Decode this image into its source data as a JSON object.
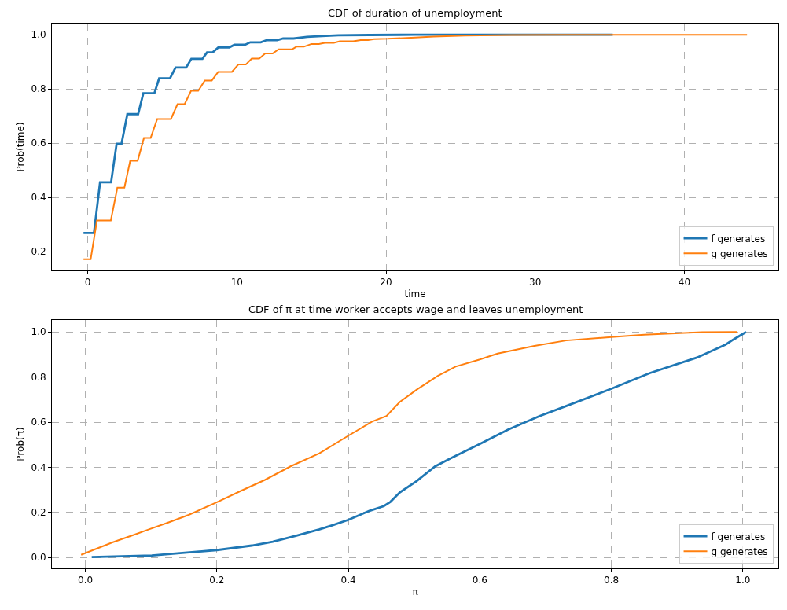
{
  "chart_data": [
    {
      "type": "line",
      "title": "CDF of duration of unemployment",
      "xlabel": "time",
      "ylabel": "Prob(time)",
      "xlim": [
        -2.4,
        46.3
      ],
      "ylim": [
        0.131,
        1.041
      ],
      "xticks": [
        0,
        10,
        20,
        30,
        40
      ],
      "yticks": [
        {
          "value": 0.2,
          "label": "0.2"
        },
        {
          "value": 0.4,
          "label": "0.4"
        },
        {
          "value": 0.6,
          "label": "0.6"
        },
        {
          "value": 0.8,
          "label": "0.8"
        },
        {
          "value": 1.0,
          "label": "1.0"
        }
      ],
      "grid": true,
      "legend": "bottom right",
      "series": [
        {
          "name": "f generates",
          "color": "#1f77b4",
          "x": [
            -0.28,
            0.42,
            0.83,
            1.57,
            1.94,
            2.27,
            2.66,
            3.38,
            3.73,
            4.47,
            4.79,
            5.52,
            5.89,
            6.6,
            6.95,
            7.69,
            8.0,
            8.38,
            8.75,
            9.49,
            9.84,
            10.55,
            10.9,
            11.6,
            12.0,
            12.7,
            13.1,
            13.8,
            14.7,
            15.7,
            16.8,
            18.9,
            22,
            35.2
          ],
          "values": [
            0.269,
            0.269,
            0.456,
            0.456,
            0.598,
            0.598,
            0.707,
            0.707,
            0.784,
            0.784,
            0.839,
            0.839,
            0.879,
            0.879,
            0.911,
            0.911,
            0.935,
            0.935,
            0.953,
            0.953,
            0.963,
            0.963,
            0.972,
            0.972,
            0.98,
            0.98,
            0.986,
            0.986,
            0.992,
            0.995,
            0.998,
            0.999,
            1.0,
            1.0
          ]
        },
        {
          "name": "g generates",
          "color": "#ff7f0e",
          "x": [
            -0.28,
            0.2,
            0.62,
            1.55,
            1.99,
            2.46,
            2.85,
            3.35,
            3.77,
            4.22,
            4.66,
            5.58,
            6.02,
            6.5,
            6.93,
            7.41,
            7.85,
            8.32,
            8.75,
            9.67,
            10.1,
            10.6,
            11.0,
            11.5,
            11.9,
            12.4,
            12.8,
            13.7,
            14.0,
            14.5,
            15.0,
            15.5,
            15.9,
            16.5,
            16.9,
            17.8,
            18.3,
            18.8,
            19.2,
            20.1,
            21.7,
            23.2,
            25.3,
            28.4,
            32,
            44.2
          ],
          "values": [
            0.172,
            0.172,
            0.315,
            0.315,
            0.436,
            0.436,
            0.535,
            0.535,
            0.619,
            0.619,
            0.689,
            0.689,
            0.744,
            0.744,
            0.793,
            0.793,
            0.831,
            0.831,
            0.863,
            0.863,
            0.89,
            0.89,
            0.912,
            0.912,
            0.931,
            0.931,
            0.946,
            0.946,
            0.956,
            0.956,
            0.966,
            0.966,
            0.97,
            0.97,
            0.976,
            0.976,
            0.98,
            0.98,
            0.984,
            0.985,
            0.989,
            0.993,
            0.997,
            0.999,
            1.0,
            1.0
          ]
        }
      ]
    },
    {
      "type": "line",
      "title": "CDF of π at time worker accepts wage and leaves unemployment",
      "xlabel": "π",
      "ylabel": "Prob(π)",
      "xlim": [
        -0.051,
        1.054
      ],
      "ylim": [
        -0.048,
        1.053
      ],
      "xticks": [
        {
          "value": 0.0,
          "label": "0.0"
        },
        {
          "value": 0.2,
          "label": "0.2"
        },
        {
          "value": 0.4,
          "label": "0.4"
        },
        {
          "value": 0.6,
          "label": "0.6"
        },
        {
          "value": 0.8,
          "label": "0.8"
        },
        {
          "value": 1.0,
          "label": "1.0"
        }
      ],
      "yticks": [
        {
          "value": 0.0,
          "label": "0.0"
        },
        {
          "value": 0.2,
          "label": "0.2"
        },
        {
          "value": 0.4,
          "label": "0.4"
        },
        {
          "value": 0.6,
          "label": "0.6"
        },
        {
          "value": 0.8,
          "label": "0.8"
        },
        {
          "value": 1.0,
          "label": "1.0"
        }
      ],
      "grid": true,
      "legend": "bottom right",
      "series": [
        {
          "name": "f generates",
          "color": "#1f77b4",
          "x": [
            0.0096,
            0.101,
            0.2,
            0.253,
            0.285,
            0.32,
            0.356,
            0.376,
            0.4,
            0.432,
            0.454,
            0.464,
            0.478,
            0.504,
            0.532,
            0.555,
            0.6,
            0.643,
            0.691,
            0.731,
            0.8,
            0.858,
            0.93,
            0.974,
            0.986,
            1.005
          ],
          "values": [
            0.002,
            0.009,
            0.033,
            0.053,
            0.07,
            0.096,
            0.125,
            0.143,
            0.167,
            0.207,
            0.228,
            0.247,
            0.288,
            0.339,
            0.404,
            0.439,
            0.503,
            0.567,
            0.627,
            0.671,
            0.748,
            0.817,
            0.886,
            0.944,
            0.967,
            1.0
          ]
        },
        {
          "name": "g generates",
          "color": "#ff7f0e",
          "x": [
            -0.0065,
            0.041,
            0.075,
            0.095,
            0.125,
            0.157,
            0.2,
            0.237,
            0.273,
            0.312,
            0.356,
            0.4,
            0.436,
            0.458,
            0.478,
            0.504,
            0.536,
            0.563,
            0.6,
            0.627,
            0.683,
            0.731,
            0.8,
            0.85,
            0.938,
            0.991
          ],
          "values": [
            0.012,
            0.067,
            0.102,
            0.123,
            0.154,
            0.189,
            0.245,
            0.296,
            0.344,
            0.404,
            0.462,
            0.54,
            0.602,
            0.627,
            0.689,
            0.744,
            0.805,
            0.846,
            0.878,
            0.904,
            0.938,
            0.962,
            0.977,
            0.988,
            0.999,
            1.0
          ]
        }
      ]
    }
  ]
}
